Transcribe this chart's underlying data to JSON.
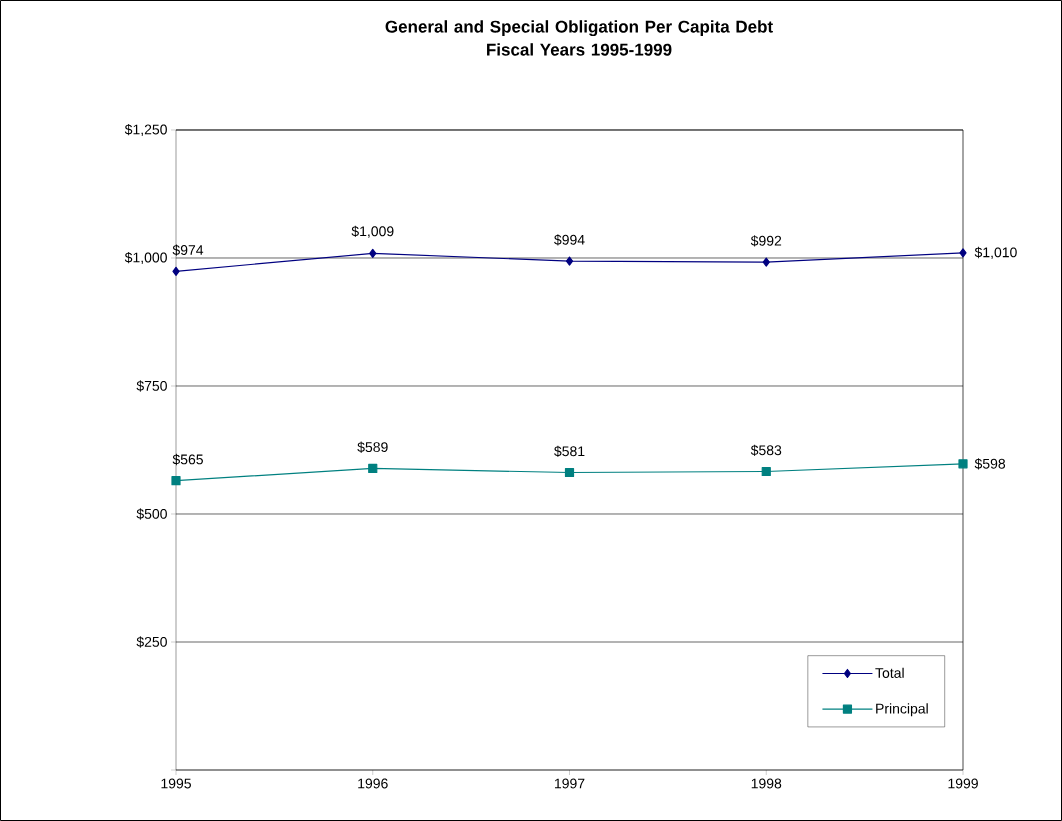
{
  "chart_data": {
    "type": "line",
    "title": "General and Special Obligation Per Capita Debt",
    "subtitle": "Fiscal Years 1995-1999",
    "x": [
      1995,
      1996,
      1997,
      1998,
      1999
    ],
    "xlim": [
      1995,
      1999
    ],
    "xticks": [
      1995,
      1996,
      1997,
      1998,
      1999
    ],
    "ylim": [
      0,
      1250
    ],
    "yticks": [
      {
        "value": 0,
        "label": null
      },
      {
        "value": 250,
        "label": "$250"
      },
      {
        "value": 500,
        "label": "$500"
      },
      {
        "value": 750,
        "label": "$750"
      },
      {
        "value": 1000,
        "label": "$1,000"
      },
      {
        "value": 1250,
        "label": "$1,250"
      }
    ],
    "grid": "y",
    "legend": "bottom right",
    "line_style": "solid",
    "series": [
      {
        "name": "Total",
        "color": "#000080",
        "marker": "diamond",
        "values": [
          974,
          1009,
          994,
          992,
          1010
        ],
        "value_labels": [
          "$974",
          "$1,009",
          "$994",
          "$992",
          "$1,010"
        ]
      },
      {
        "name": "Principal",
        "color": "#008080",
        "marker": "square",
        "values": [
          565,
          589,
          581,
          583,
          598
        ],
        "value_labels": [
          "$565",
          "$589",
          "$581",
          "$583",
          "$598"
        ]
      }
    ]
  }
}
